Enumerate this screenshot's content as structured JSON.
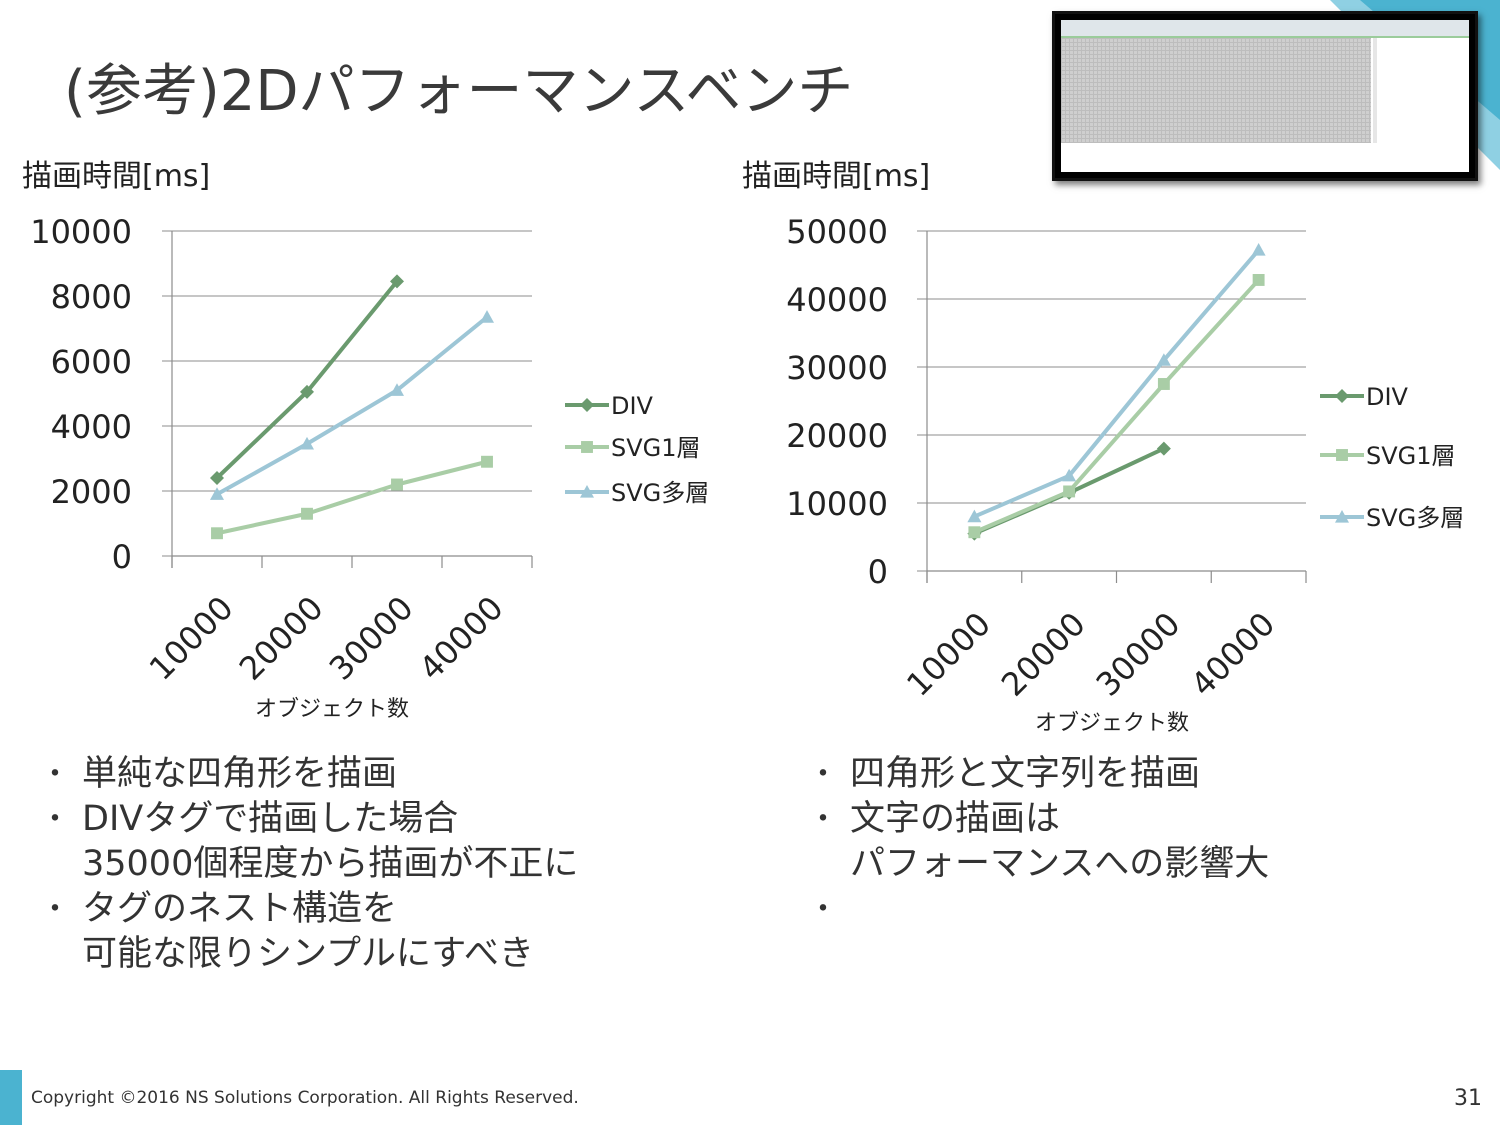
{
  "slide": {
    "title": "(参考)2Dパフォーマンスベンチ",
    "copyright": "Copyright ©2016 NS Solutions Corporation. All Rights Reserved.",
    "page_number": "31"
  },
  "colors": {
    "div": "#6a9a6e",
    "svg1": "#a9cda6",
    "svg_multi": "#9dc6d6",
    "accent": "#4bb3d0"
  },
  "bullets_left": [
    "単純な四角形を描画",
    "DIVタグで描画した場合\n35000個程度から描画が不正に",
    "タグのネスト構造を\n可能な限りシンプルにすべき"
  ],
  "bullets_right": [
    "四角形と文字列を描画",
    "文字の描画は\nパフォーマンスへの影響大",
    ""
  ],
  "chart_data": [
    {
      "type": "line",
      "ylabel": "描画時間[ms]",
      "xlabel": "オブジェクト数",
      "categories": [
        "10000",
        "20000",
        "30000",
        "40000"
      ],
      "ylim": [
        0,
        10000
      ],
      "yticks": [
        "0",
        "2000",
        "4000",
        "6000",
        "8000",
        "10000"
      ],
      "grid": true,
      "legend": "right",
      "series": [
        {
          "name": "DIV",
          "marker": "diamond",
          "values": [
            2400,
            5050,
            8450,
            null
          ]
        },
        {
          "name": "SVG1層",
          "marker": "square",
          "values": [
            700,
            1300,
            2200,
            2900
          ]
        },
        {
          "name": "SVG多層",
          "marker": "triangle",
          "values": [
            1900,
            3450,
            5100,
            7350
          ]
        }
      ]
    },
    {
      "type": "line",
      "ylabel": "描画時間[ms]",
      "xlabel": "オブジェクト数",
      "categories": [
        "10000",
        "20000",
        "30000",
        "40000"
      ],
      "ylim": [
        0,
        50000
      ],
      "yticks": [
        "0",
        "10000",
        "20000",
        "30000",
        "40000",
        "50000"
      ],
      "grid": true,
      "legend": "right",
      "series": [
        {
          "name": "DIV",
          "marker": "diamond",
          "values": [
            5500,
            11500,
            18000,
            null
          ]
        },
        {
          "name": "SVG1層",
          "marker": "square",
          "values": [
            5700,
            11700,
            27500,
            42800
          ]
        },
        {
          "name": "SVG多層",
          "marker": "triangle",
          "values": [
            8000,
            14000,
            31000,
            47200
          ]
        }
      ]
    }
  ]
}
